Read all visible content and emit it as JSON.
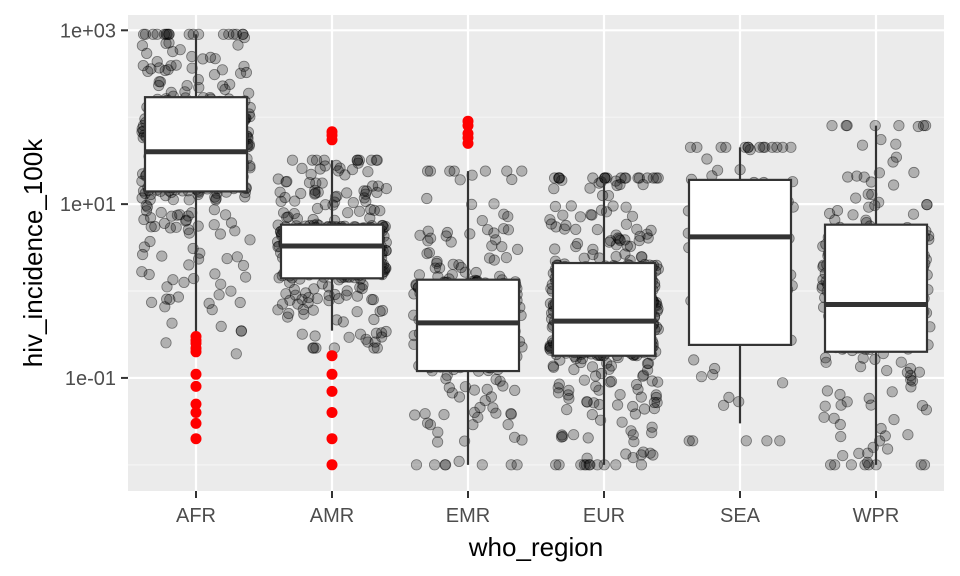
{
  "chart_data": {
    "type": "boxplot",
    "title": "",
    "xlabel": "who_region",
    "ylabel": "hiv_incidence_100k",
    "y_scale": "log10",
    "ylim": [
      0.005,
      1500
    ],
    "y_ticks": [
      {
        "value": 0.1,
        "label": "1e-01"
      },
      {
        "value": 10,
        "label": "1e+01"
      },
      {
        "value": 1000,
        "label": "1e+03"
      }
    ],
    "y_minor_ticks": [
      0.01,
      1,
      100
    ],
    "categories": [
      "AFR",
      "AMR",
      "EMR",
      "EUR",
      "SEA",
      "WPR"
    ],
    "boxes": [
      {
        "category": "AFR",
        "min": 0.3,
        "q1": 14,
        "median": 40,
        "q3": 170,
        "max": 900
      },
      {
        "category": "AMR",
        "min": 0.35,
        "q1": 1.4,
        "median": 3.3,
        "q3": 5.8,
        "max": 32
      },
      {
        "category": "EMR",
        "min": 0.01,
        "q1": 0.12,
        "median": 0.43,
        "q3": 1.35,
        "max": 24
      },
      {
        "category": "EUR",
        "min": 0.01,
        "q1": 0.18,
        "median": 0.45,
        "q3": 2.1,
        "max": 20
      },
      {
        "category": "SEA",
        "min": 0.03,
        "q1": 0.24,
        "median": 4.2,
        "q3": 19,
        "max": 45
      },
      {
        "category": "WPR",
        "min": 0.01,
        "q1": 0.2,
        "median": 0.7,
        "q3": 5.8,
        "max": 80
      }
    ],
    "outliers": [
      {
        "category": "AFR",
        "values": [
          0.02,
          0.03,
          0.04,
          0.05,
          0.08,
          0.11,
          0.2,
          0.22,
          0.25,
          0.27,
          0.3
        ]
      },
      {
        "category": "AMR",
        "values": [
          0.01,
          0.02,
          0.04,
          0.07,
          0.11,
          0.18,
          55,
          62,
          68
        ]
      },
      {
        "category": "EMR",
        "values": [
          50,
          58,
          65,
          80,
          90
        ]
      }
    ],
    "jitter_points": {
      "alpha": 0.25,
      "counts": [
        460,
        400,
        320,
        560,
        120,
        330
      ]
    },
    "colors": {
      "panel_background": "#ebebeb",
      "grid_major": "#ffffff",
      "grid_minor": "#f5f5f5",
      "box_fill": "#ffffff",
      "box_line": "#333333",
      "jitter_point": "#000000",
      "outlier_point": "#ff0000",
      "tick_text": "#4d4d4d",
      "axis_title": "#000000"
    }
  }
}
